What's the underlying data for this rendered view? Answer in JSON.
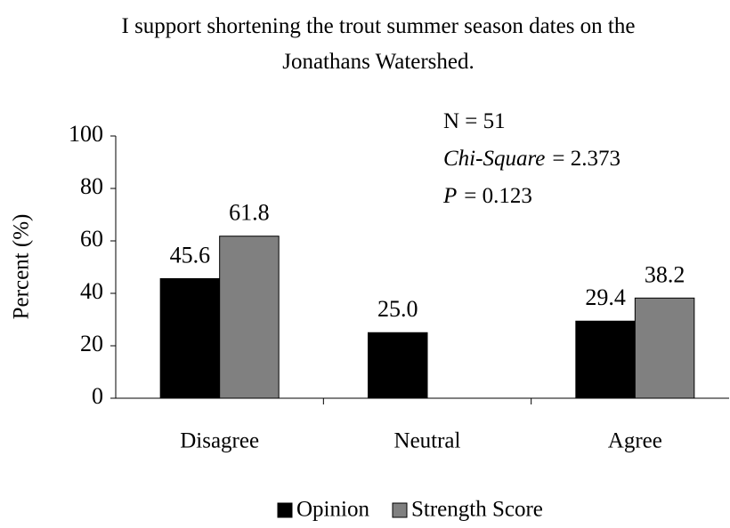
{
  "chart_data": {
    "type": "bar",
    "title": "I support shortening the trout summer season dates on the Jonathans Watershed.",
    "y_label": "Percent (%)",
    "categories": [
      "Disagree",
      "Neutral",
      "Agree"
    ],
    "series": [
      {
        "name": "Opinion",
        "color": "#000000",
        "values": [
          45.6,
          25,
          29.4
        ],
        "value_labels": [
          "45.6",
          "25.0",
          "29.4"
        ]
      },
      {
        "name": "Strength Score",
        "color": "#808080",
        "values": [
          61.8,
          null,
          38.2
        ],
        "value_labels": [
          "61.8",
          null,
          "38.2"
        ]
      }
    ],
    "ylim": [
      0,
      100
    ],
    "yticks": [
      0,
      20,
      40,
      60,
      80,
      100
    ],
    "annotations": [
      {
        "text": "N = 51"
      },
      {
        "label": "Chi-Square",
        "text": "= 2.373"
      },
      {
        "label": "P",
        "text": "= 0.123"
      }
    ],
    "legend": "bottom"
  }
}
